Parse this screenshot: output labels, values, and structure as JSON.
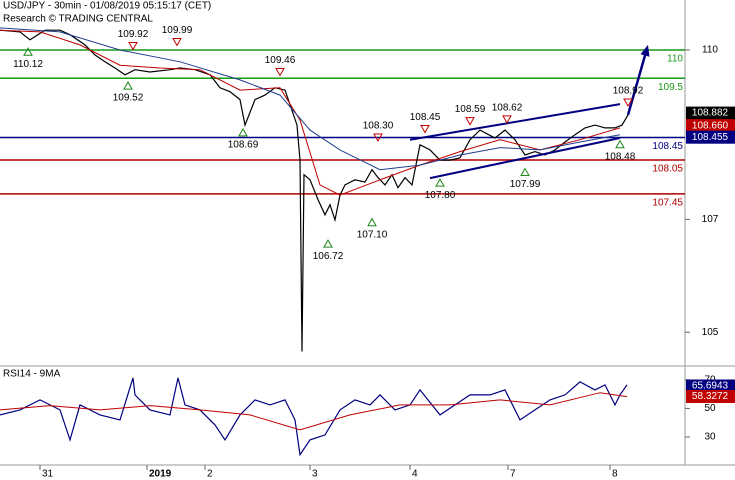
{
  "chart_data": [
    {
      "type": "line",
      "title": "USD/JPY - 30min - 01/08/2019 05:15:17 (CET)",
      "subtitle": "Research © TRADING CENTRAL",
      "xlim": [
        0,
        6.85
      ],
      "ylim": [
        104.42,
        110.885
      ],
      "yticks": [
        105,
        107,
        110
      ],
      "series": [
        {
          "color": "#000000",
          "x": [
            0,
            0.2,
            0.3,
            0.45,
            0.6,
            0.7,
            0.85,
            0.95,
            1.05,
            1.15,
            1.25,
            1.35,
            1.5,
            1.7,
            1.8,
            1.95,
            2.1,
            2.2,
            2.3,
            2.4,
            2.45,
            2.55,
            2.65,
            2.75,
            2.85,
            2.9,
            2.97,
            3.0,
            3.02,
            3.04,
            3.1,
            3.18,
            3.25,
            3.3,
            3.35,
            3.4,
            3.45,
            3.55,
            3.65,
            3.72,
            3.78,
            3.85,
            3.92,
            3.98,
            4.05,
            4.12,
            4.2,
            4.3,
            4.4,
            4.5,
            4.6,
            4.7,
            4.8,
            4.95,
            5.05,
            5.15,
            5.25,
            5.35,
            5.45,
            5.55,
            5.65,
            5.75,
            5.85,
            5.95,
            6.05,
            6.15,
            6.22,
            6.28
          ],
          "values": [
            110.35,
            110.32,
            110.18,
            110.35,
            110.35,
            110.27,
            110.09,
            109.91,
            109.79,
            109.68,
            109.56,
            109.65,
            109.61,
            109.65,
            109.68,
            109.65,
            109.56,
            109.33,
            109.26,
            109.12,
            108.67,
            109.12,
            109.2,
            109.33,
            109.29,
            109.03,
            108.67,
            108.05,
            104.66,
            107.79,
            107.7,
            107.35,
            107.08,
            107.26,
            106.99,
            107.43,
            107.61,
            107.7,
            107.66,
            107.88,
            107.74,
            107.61,
            107.79,
            107.56,
            107.74,
            107.61,
            108.32,
            108.23,
            108.05,
            108.05,
            108.09,
            108.41,
            108.58,
            108.44,
            108.58,
            108.41,
            108.14,
            108.2,
            108.14,
            108.23,
            108.37,
            108.5,
            108.62,
            108.67,
            108.62,
            108.62,
            108.67,
            108.85
          ]
        },
        {
          "color": "#c00000",
          "x": [
            0,
            0.4,
            0.8,
            1.2,
            1.6,
            2.0,
            2.4,
            2.8,
            3.0,
            3.2,
            3.4,
            3.8,
            4.2,
            4.6,
            5.0,
            5.4,
            5.8,
            6.2
          ],
          "values": [
            110.35,
            110.32,
            110.09,
            109.73,
            109.68,
            109.65,
            109.29,
            109.33,
            108.76,
            107.61,
            107.43,
            107.7,
            107.96,
            108.2,
            108.41,
            108.23,
            108.41,
            108.62
          ]
        },
        {
          "color": "#1f3f8f",
          "x": [
            0,
            0.6,
            1.2,
            1.8,
            2.4,
            2.8,
            3.1,
            3.4,
            3.8,
            4.2,
            4.6,
            5.0,
            5.4,
            5.8,
            6.2
          ],
          "values": [
            110.39,
            110.32,
            110.0,
            109.79,
            109.47,
            109.2,
            108.58,
            108.23,
            107.88,
            107.96,
            108.14,
            108.27,
            108.23,
            108.37,
            108.5
          ]
        }
      ],
      "levels": {
        "values": [
          110,
          109.5,
          108.45,
          108.05,
          107.45
        ],
        "colors": [
          "#1a9a1a",
          "#1a9a1a",
          "#000080",
          "#b00000",
          "#b00000"
        ]
      },
      "pivots": {
        "kinds": [
          "low",
          "high",
          "high",
          "low",
          "high",
          "low",
          "high",
          "high",
          "high",
          "high",
          "high",
          "low",
          "low",
          "low",
          "low",
          "low"
        ],
        "x": [
          0.28,
          1.33,
          1.77,
          1.28,
          2.8,
          2.43,
          3.78,
          4.25,
          4.7,
          5.07,
          6.28,
          3.28,
          3.72,
          4.4,
          5.25,
          6.2
        ],
        "values": [
          110.12,
          109.92,
          109.99,
          109.52,
          109.46,
          108.69,
          108.3,
          108.45,
          108.59,
          108.62,
          108.92,
          106.72,
          107.1,
          107.8,
          107.99,
          108.48
        ],
        "value_labels": [
          "110.12",
          "109.92",
          "109.99",
          "109.52",
          "109.46",
          "108.69",
          "108.30",
          "108.45",
          "108.59",
          "108.62",
          "108.92",
          "106.72",
          "107.10",
          "107.80",
          "107.99",
          "108.48"
        ]
      },
      "trendlines": [
        {
          "x": [
            4.1,
            6.2
          ],
          "values": [
            108.41,
            109.04
          ]
        },
        {
          "x": [
            4.3,
            6.2
          ],
          "values": [
            107.73,
            108.44
          ]
        }
      ],
      "target_arrow": {
        "x": [
          6.28,
          6.48
        ],
        "values": [
          108.85,
          110.09
        ]
      },
      "price_tags": {
        "values": [
          108.882,
          108.66,
          108.455
        ],
        "value_labels": [
          "108.882",
          "108.660",
          "108.455"
        ],
        "colors": [
          "#000000",
          "#c00000",
          "#000080"
        ]
      }
    },
    {
      "type": "line",
      "title": "RSI14 - 9MA",
      "xlim": [
        0,
        6.85
      ],
      "ylim": [
        10.4,
        79
      ],
      "yticks": [
        30,
        50,
        70
      ],
      "xticks": [
        {
          "value": 0.4,
          "label": "31"
        },
        {
          "value": 1.47,
          "label": "2019"
        },
        {
          "value": 2.05,
          "label": "2"
        },
        {
          "value": 3.1,
          "label": "3"
        },
        {
          "value": 4.1,
          "label": "4"
        },
        {
          "value": 5.08,
          "label": "7"
        },
        {
          "value": 6.1,
          "label": "8"
        }
      ],
      "series": [
        {
          "color": "#000080",
          "x": [
            0,
            0.2,
            0.4,
            0.6,
            0.7,
            0.8,
            1.0,
            1.2,
            1.33,
            1.35,
            1.5,
            1.7,
            1.78,
            1.85,
            2.0,
            2.15,
            2.25,
            2.4,
            2.55,
            2.7,
            2.85,
            2.95,
            3.0,
            3.1,
            3.25,
            3.4,
            3.55,
            3.7,
            3.8,
            3.95,
            4.1,
            4.2,
            4.4,
            4.55,
            4.7,
            4.9,
            5.05,
            5.2,
            5.35,
            5.5,
            5.65,
            5.8,
            5.95,
            6.05,
            6.15,
            6.2,
            6.27
          ],
          "values": [
            45.5,
            49,
            56,
            49,
            28,
            52.5,
            45.5,
            42,
            71.4,
            59.5,
            49,
            45.5,
            71.4,
            52.5,
            49,
            38.5,
            28,
            45.5,
            56,
            52.5,
            56,
            42,
            17.6,
            28,
            31.5,
            49,
            56,
            52.5,
            59.5,
            49,
            52.5,
            63,
            45.5,
            52.5,
            59.5,
            59.5,
            63,
            42,
            49,
            56,
            59.5,
            68.6,
            63,
            66.5,
            52.5,
            59.5,
            66.5
          ]
        },
        {
          "color": "#c00000",
          "x": [
            0,
            0.5,
            1.0,
            1.5,
            2.0,
            2.5,
            3.0,
            3.5,
            4.0,
            4.5,
            5.0,
            5.5,
            6.0,
            6.27
          ],
          "values": [
            49,
            52,
            49,
            52,
            49,
            45.5,
            35,
            45.5,
            52.5,
            52.5,
            56,
            52.5,
            61,
            58.3
          ]
        }
      ],
      "price_tags": {
        "values": [
          65.6943,
          58.3272
        ],
        "colors": [
          "#000080",
          "#c00000"
        ]
      }
    }
  ]
}
